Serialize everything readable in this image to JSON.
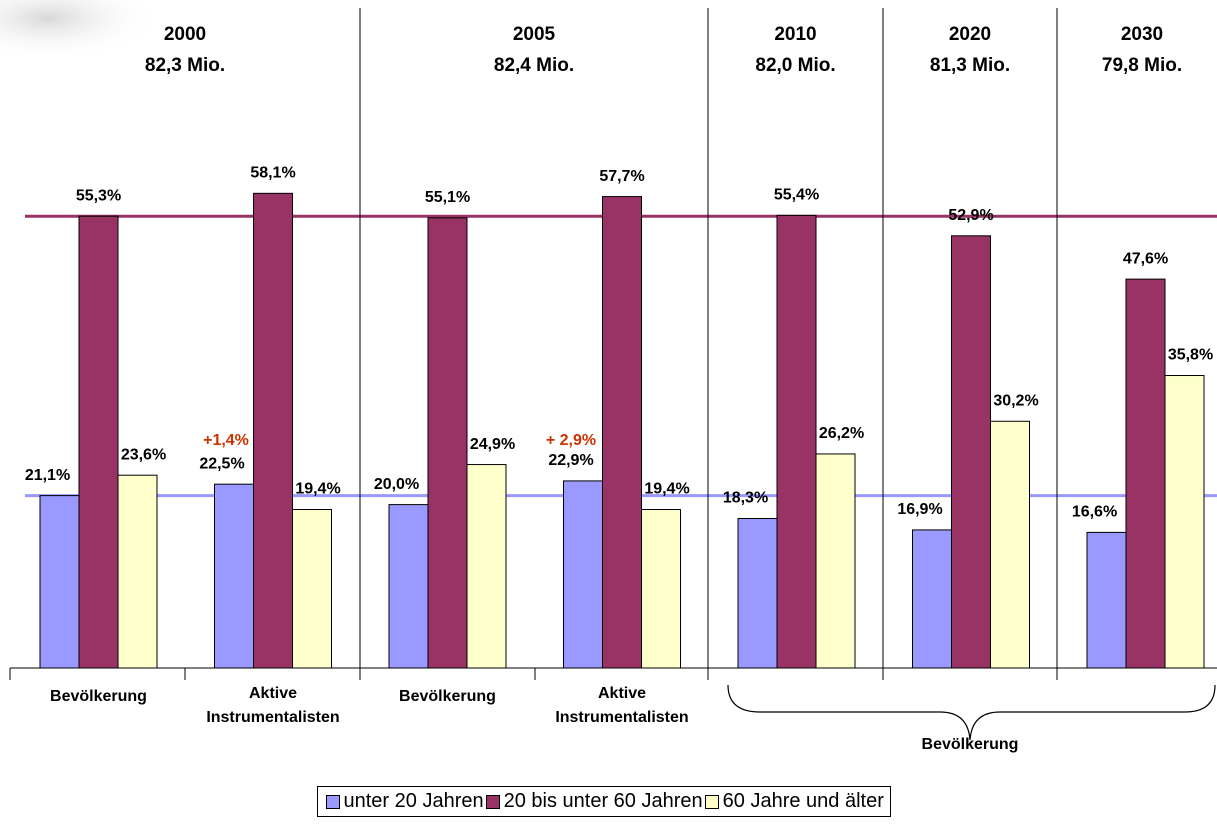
{
  "chart_data": {
    "type": "bar",
    "sections": [
      {
        "year": "2000",
        "population": "82,3 Mio."
      },
      {
        "year": "2005",
        "population": "82,4 Mio."
      },
      {
        "year": "2010",
        "population": "82,0 Mio."
      },
      {
        "year": "2020",
        "population": "81,3 Mio."
      },
      {
        "year": "2030",
        "population": "79,8 Mio."
      }
    ],
    "categories": [
      "Bevölkerung",
      "Aktive Instrumentalisten",
      "Bevölkerung",
      "Aktive Instrumentalisten",
      null,
      null,
      null
    ],
    "group_label": "Bevölkerung",
    "series": [
      {
        "name": "unter 20 Jahren",
        "color": "#9999ff",
        "values": [
          21.1,
          22.5,
          20.0,
          22.9,
          18.3,
          16.9,
          16.6
        ],
        "value_labels": [
          "21,1%",
          "22,5%",
          "20,0%",
          "22,9%",
          "18,3%",
          "16,9%",
          "16,6%"
        ]
      },
      {
        "name": "20 bis unter 60 Jahren",
        "color": "#993366",
        "values": [
          55.3,
          58.1,
          55.1,
          57.7,
          55.4,
          52.9,
          47.6
        ],
        "value_labels": [
          "55,3%",
          "58,1%",
          "55,1%",
          "57,7%",
          "55,4%",
          "52,9%",
          "47,6%"
        ]
      },
      {
        "name": "60 Jahre und älter",
        "color": "#ffffcc",
        "values": [
          23.6,
          19.4,
          24.9,
          19.4,
          26.2,
          30.2,
          35.8
        ],
        "value_labels": [
          "23,6%",
          "19,4%",
          "24,9%",
          "19,4%",
          "26,2%",
          "30,2%",
          "35,8%"
        ]
      }
    ],
    "annotations": [
      {
        "text": "+1,4%",
        "color": "#cc3300"
      },
      {
        "text": "+ 2,9%",
        "color": "#cc3300"
      }
    ],
    "legend": "bottom"
  }
}
